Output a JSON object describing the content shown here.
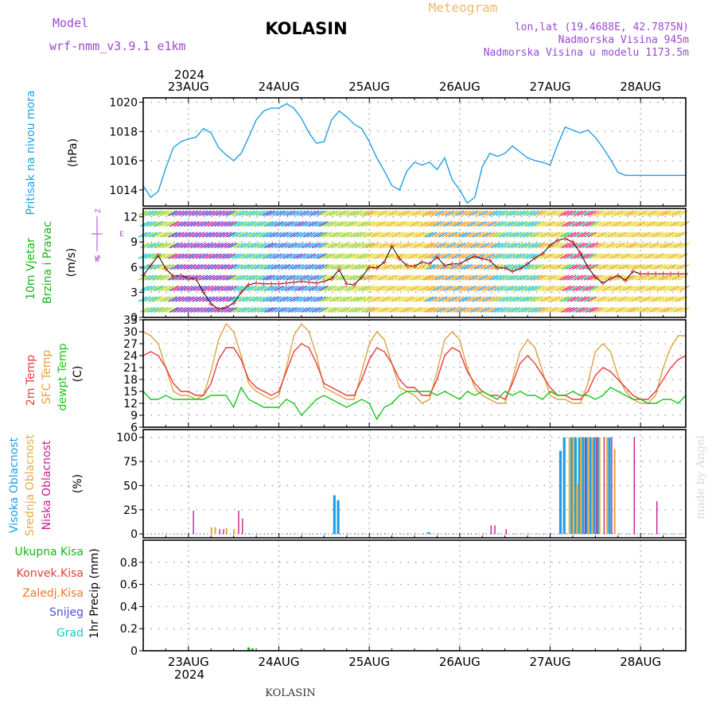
{
  "header": {
    "model_label": "Model",
    "model_value": "wrf-nmm_v3.9.1  e1km",
    "station": "KOLASIN",
    "meteogram_label": "Meteogram",
    "lonlat": "lon,lat (19.4688E, 42.7875N)",
    "altitude": "Nadmorska Visina 945m",
    "model_altitude": "Nadmorska Visina u modelu 1173.5m",
    "footer_station": "KOLASIN",
    "watermark": "made by Angel"
  },
  "colors": {
    "title": "#000000",
    "model": "#9b48d4",
    "meteogram": "#e9b96b",
    "pressure": "#1ea0e6",
    "wind_label": "#18b418",
    "wind_axis": "#b040d0",
    "t2m": "#e83c3c",
    "tsfc": "#e0a040",
    "tdew": "#18c818",
    "cloud_high": "#1e9ee6",
    "cloud_mid": "#e0b040",
    "cloud_low": "#c81e8c",
    "rain_total": "#18b418",
    "rain_conv": "#e83c3c",
    "rain_frz": "#f07828",
    "snow": "#5050e0",
    "hail": "#18c8c8",
    "watermark": "#d8d8d8"
  },
  "time_axis": {
    "year": "2024",
    "days": [
      "23AUG",
      "24AUG",
      "25AUG",
      "26AUG",
      "27AUG",
      "28AUG"
    ]
  },
  "panels": {
    "pressure": {
      "ylabel": "Pritisak na nivou mora",
      "unit": "(hPa)"
    },
    "wind": {
      "ylabel1": "10m Vjetar",
      "ylabel2": "Brzina i Pravac",
      "unit": "(m/s)",
      "compass_z": "Z",
      "compass_w": "W",
      "compass_e": "E",
      "compass_s": "S"
    },
    "temp": {
      "ylabel1": "2m Temp",
      "ylabel2": "SFC Temp",
      "ylabel3": "dewpt Temp",
      "unit": "(C)"
    },
    "cloud": {
      "ylabel1": "Visoka Oblacnost",
      "ylabel2": "Srednja Oblacnost",
      "ylabel3": "Niska Oblacnost",
      "unit": "(%)"
    },
    "precip": {
      "legend": [
        "Ukupna Kisa",
        "Konvek.Kisa",
        "Zaledj.Kisa",
        "Snijeg",
        "Grad"
      ],
      "ylabel": "1hr Precip (mm)"
    }
  },
  "chart_data": [
    {
      "type": "line",
      "title": "",
      "ylabel": "Pritisak na nivou mora (hPa)",
      "ylim": [
        1012.9,
        1020.3
      ],
      "yticks": [
        1014,
        1016,
        1018,
        1020
      ],
      "series": [
        {
          "name": "Pritisak na nivou mora",
          "x": [
            0,
            2,
            4,
            6,
            8,
            10,
            12,
            14,
            16,
            18,
            20,
            22,
            24,
            26,
            28,
            30,
            32,
            34,
            36,
            38,
            40,
            42,
            44,
            46,
            48,
            50,
            52,
            54,
            56,
            58,
            60,
            62,
            64,
            66,
            68,
            70,
            72,
            74,
            76,
            78,
            80,
            82,
            84,
            86,
            88,
            90,
            92,
            94,
            96,
            98,
            100,
            102,
            104,
            106,
            108,
            110,
            112,
            114,
            116,
            118,
            120,
            122,
            124,
            126,
            128,
            130,
            132,
            134,
            136,
            138,
            140,
            142,
            144
          ],
          "values": [
            1014.3,
            1013.5,
            1013.9,
            1015.5,
            1016.9,
            1017.3,
            1017.5,
            1017.6,
            1018.2,
            1017.9,
            1016.9,
            1016.4,
            1016.0,
            1016.5,
            1017.6,
            1018.8,
            1019.4,
            1019.6,
            1019.6,
            1019.9,
            1019.6,
            1018.9,
            1017.9,
            1017.2,
            1017.3,
            1018.8,
            1019.4,
            1019.0,
            1018.5,
            1018.2,
            1017.3,
            1016.2,
            1015.3,
            1014.3,
            1014.0,
            1015.3,
            1015.9,
            1015.7,
            1015.9,
            1015.4,
            1016.2,
            1014.7,
            1014.0,
            1013.1,
            1013.5,
            1015.6,
            1016.5,
            1016.3,
            1016.5,
            1017.0,
            1016.6,
            1016.2,
            1016.0,
            1015.9,
            1015.7,
            1017.1,
            1018.3,
            1018.1,
            1017.9,
            1018.1,
            1017.6,
            1016.9,
            1016.1,
            1015.2,
            1015.0,
            1015.0,
            1015.0,
            1015.0,
            1015.0,
            1015.0,
            1015.0,
            1015.0,
            1015.0
          ]
        }
      ]
    },
    {
      "type": "line",
      "title": "",
      "ylabel": "10m Vjetar Brzina i Pravac (m/s)",
      "ylim": [
        0,
        13
      ],
      "yticks": [
        0,
        3,
        6,
        9,
        12
      ],
      "series": [
        {
          "name": "10m Vjetar",
          "x": [
            0,
            2,
            4,
            6,
            8,
            10,
            12,
            14,
            16,
            18,
            20,
            22,
            24,
            26,
            28,
            30,
            32,
            34,
            36,
            38,
            40,
            42,
            44,
            46,
            48,
            50,
            52,
            54,
            56,
            58,
            60,
            62,
            64,
            66,
            68,
            70,
            72,
            74,
            76,
            78,
            80,
            82,
            84,
            86,
            88,
            90,
            92,
            94,
            96,
            98,
            100,
            102,
            104,
            106,
            108,
            110,
            112,
            114,
            116,
            118,
            120,
            122,
            124,
            126,
            128,
            130,
            132,
            134,
            136,
            138,
            140,
            142,
            144
          ],
          "values": [
            5.0,
            6.2,
            7.4,
            5.8,
            4.9,
            5.0,
            4.7,
            4.6,
            3.0,
            1.6,
            1.0,
            1.2,
            1.7,
            3.0,
            3.9,
            4.1,
            4.0,
            4.0,
            4.0,
            4.1,
            4.2,
            4.3,
            4.2,
            4.1,
            4.3,
            4.6,
            5.7,
            4.0,
            3.9,
            4.8,
            6.0,
            5.9,
            6.6,
            8.5,
            7.0,
            6.2,
            6.1,
            6.6,
            6.4,
            7.2,
            6.2,
            6.4,
            6.4,
            6.9,
            7.3,
            7.0,
            6.8,
            5.9,
            5.9,
            5.5,
            5.8,
            6.4,
            7.1,
            7.6,
            8.6,
            9.2,
            9.4,
            9.0,
            7.7,
            6.0,
            4.8,
            4.1,
            4.6,
            5.0,
            4.4,
            5.5,
            5.2,
            5.2,
            5.2,
            5.2,
            5.2,
            5.2,
            5.2
          ]
        }
      ]
    },
    {
      "type": "line",
      "title": "",
      "ylabel": "Temp (C)",
      "ylim": [
        6,
        33
      ],
      "yticks": [
        6,
        9,
        12,
        15,
        18,
        21,
        24,
        27,
        30,
        33
      ],
      "series": [
        {
          "name": "2m Temp",
          "x": [
            0,
            2,
            4,
            6,
            8,
            10,
            12,
            14,
            16,
            18,
            20,
            22,
            24,
            26,
            28,
            30,
            32,
            34,
            36,
            38,
            40,
            42,
            44,
            46,
            48,
            50,
            52,
            54,
            56,
            58,
            60,
            62,
            64,
            66,
            68,
            70,
            72,
            74,
            76,
            78,
            80,
            82,
            84,
            86,
            88,
            90,
            92,
            94,
            96,
            98,
            100,
            102,
            104,
            106,
            108,
            110,
            112,
            114,
            116,
            118,
            120,
            122,
            124,
            126,
            128,
            130,
            132,
            134,
            136,
            138,
            140,
            142,
            144
          ],
          "values": [
            24,
            25,
            24,
            21,
            17,
            15,
            15,
            14,
            14,
            17,
            23,
            26,
            26,
            23,
            18,
            16,
            15,
            14,
            15,
            20,
            25,
            27,
            26,
            22,
            17,
            16,
            15,
            14,
            14,
            18,
            23,
            26,
            25,
            22,
            18,
            16,
            16,
            14,
            14,
            18,
            24,
            26,
            25,
            20,
            17,
            15,
            14,
            14,
            13,
            17,
            22,
            24,
            22,
            19,
            16,
            14,
            14,
            13,
            13,
            15,
            19,
            21,
            20,
            18,
            16,
            14,
            13,
            13,
            15,
            18,
            21,
            23,
            24
          ]
        },
        {
          "name": "SFC Temp",
          "x": [
            0,
            2,
            4,
            6,
            8,
            10,
            12,
            14,
            16,
            18,
            20,
            22,
            24,
            26,
            28,
            30,
            32,
            34,
            36,
            38,
            40,
            42,
            44,
            46,
            48,
            50,
            52,
            54,
            56,
            58,
            60,
            62,
            64,
            66,
            68,
            70,
            72,
            74,
            76,
            78,
            80,
            82,
            84,
            86,
            88,
            90,
            92,
            94,
            96,
            98,
            100,
            102,
            104,
            106,
            108,
            110,
            112,
            114,
            116,
            118,
            120,
            122,
            124,
            126,
            128,
            130,
            132,
            134,
            136,
            138,
            140,
            142,
            144
          ],
          "values": [
            30,
            29,
            27,
            21,
            15,
            14,
            14,
            13,
            14,
            20,
            28,
            32,
            30,
            24,
            17,
            15,
            14,
            13,
            14,
            21,
            29,
            32,
            30,
            24,
            16,
            15,
            14,
            13,
            13,
            20,
            27,
            30,
            28,
            22,
            16,
            15,
            14,
            12,
            13,
            20,
            28,
            30,
            28,
            21,
            16,
            14,
            13,
            12,
            12,
            18,
            25,
            28,
            26,
            20,
            14,
            13,
            13,
            12,
            12,
            17,
            25,
            27,
            25,
            19,
            15,
            13,
            12,
            12,
            14,
            21,
            26,
            29,
            29
          ]
        },
        {
          "name": "dewpt Temp",
          "x": [
            0,
            2,
            4,
            6,
            8,
            10,
            12,
            14,
            16,
            18,
            20,
            22,
            24,
            26,
            28,
            30,
            32,
            34,
            36,
            38,
            40,
            42,
            44,
            46,
            48,
            50,
            52,
            54,
            56,
            58,
            60,
            62,
            64,
            66,
            68,
            70,
            72,
            74,
            76,
            78,
            80,
            82,
            84,
            86,
            88,
            90,
            92,
            94,
            96,
            98,
            100,
            102,
            104,
            106,
            108,
            110,
            112,
            114,
            116,
            118,
            120,
            122,
            124,
            126,
            128,
            130,
            132,
            134,
            136,
            138,
            140,
            142,
            144
          ],
          "values": [
            15,
            13,
            13,
            14,
            13,
            13,
            13,
            13,
            13,
            14,
            14,
            14,
            11,
            16,
            13,
            12,
            11,
            11,
            11,
            13,
            12,
            9,
            11,
            13,
            14,
            13,
            12,
            11,
            12,
            13,
            12,
            8,
            11,
            12,
            14,
            15,
            15,
            15,
            15,
            14,
            15,
            14,
            13,
            15,
            14,
            15,
            14,
            13,
            15,
            14,
            15,
            14,
            14,
            13,
            15,
            14,
            14,
            15,
            14,
            14,
            13,
            14,
            16,
            15,
            14,
            13,
            13,
            12,
            12,
            13,
            13,
            12,
            14
          ]
        }
      ]
    },
    {
      "type": "bar",
      "title": "",
      "ylabel": "Oblacnost (%)",
      "ylim": [
        -4,
        108
      ],
      "yticks": [
        0,
        25,
        50,
        75,
        100
      ],
      "series": [
        {
          "name": "Visoka Oblacnost",
          "x": [
            51,
            52,
            76,
            77,
            78,
            79,
            80,
            81,
            82,
            83,
            84,
            85,
            86,
            87,
            88,
            89,
            90,
            91,
            92,
            93,
            94,
            95,
            96,
            97,
            98,
            99,
            100,
            101,
            102,
            103,
            104,
            105,
            106,
            107,
            108,
            109,
            110,
            111,
            112,
            113,
            114,
            115,
            116,
            117,
            118,
            119,
            120,
            121,
            122,
            123,
            124,
            125,
            126,
            127,
            128,
            129,
            130
          ],
          "values": [
            40,
            35,
            2,
            0,
            0,
            0,
            0,
            0,
            0,
            0,
            0,
            0,
            0,
            0,
            0,
            0,
            0,
            0,
            0,
            0,
            0,
            0,
            0,
            0,
            0,
            0,
            0,
            0,
            0,
            0,
            0,
            0,
            0,
            0,
            0,
            0,
            0,
            86,
            100,
            0,
            100,
            100,
            100,
            100,
            100,
            100,
            100,
            100,
            0,
            0,
            100,
            0,
            0,
            0,
            0,
            0,
            0
          ]
        },
        {
          "name": "Srednja Oblacnost",
          "x": [
            18,
            19,
            22,
            24,
            113,
            114,
            115,
            116,
            118,
            119,
            121,
            123,
            125
          ],
          "values": [
            7,
            7,
            6,
            5,
            100,
            100,
            52,
            100,
            100,
            100,
            100,
            100,
            88
          ]
        },
        {
          "name": "Niska Oblacnost",
          "x": [
            13,
            20,
            21,
            25,
            26,
            92,
            93,
            96,
            117,
            120,
            122,
            124,
            130,
            136
          ],
          "values": [
            24,
            5,
            5,
            24,
            16,
            9,
            9,
            5,
            100,
            100,
            100,
            100,
            100,
            34
          ]
        }
      ]
    },
    {
      "type": "bar",
      "title": "",
      "ylabel": "1hr Precip (mm)",
      "ylim": [
        0,
        1.0
      ],
      "yticks": [
        0,
        0.2,
        0.4,
        0.6,
        0.8
      ],
      "series": [
        {
          "name": "Ukupna Kisa",
          "x": [
            28,
            29
          ],
          "values": [
            0.03,
            0.02
          ]
        }
      ]
    }
  ]
}
